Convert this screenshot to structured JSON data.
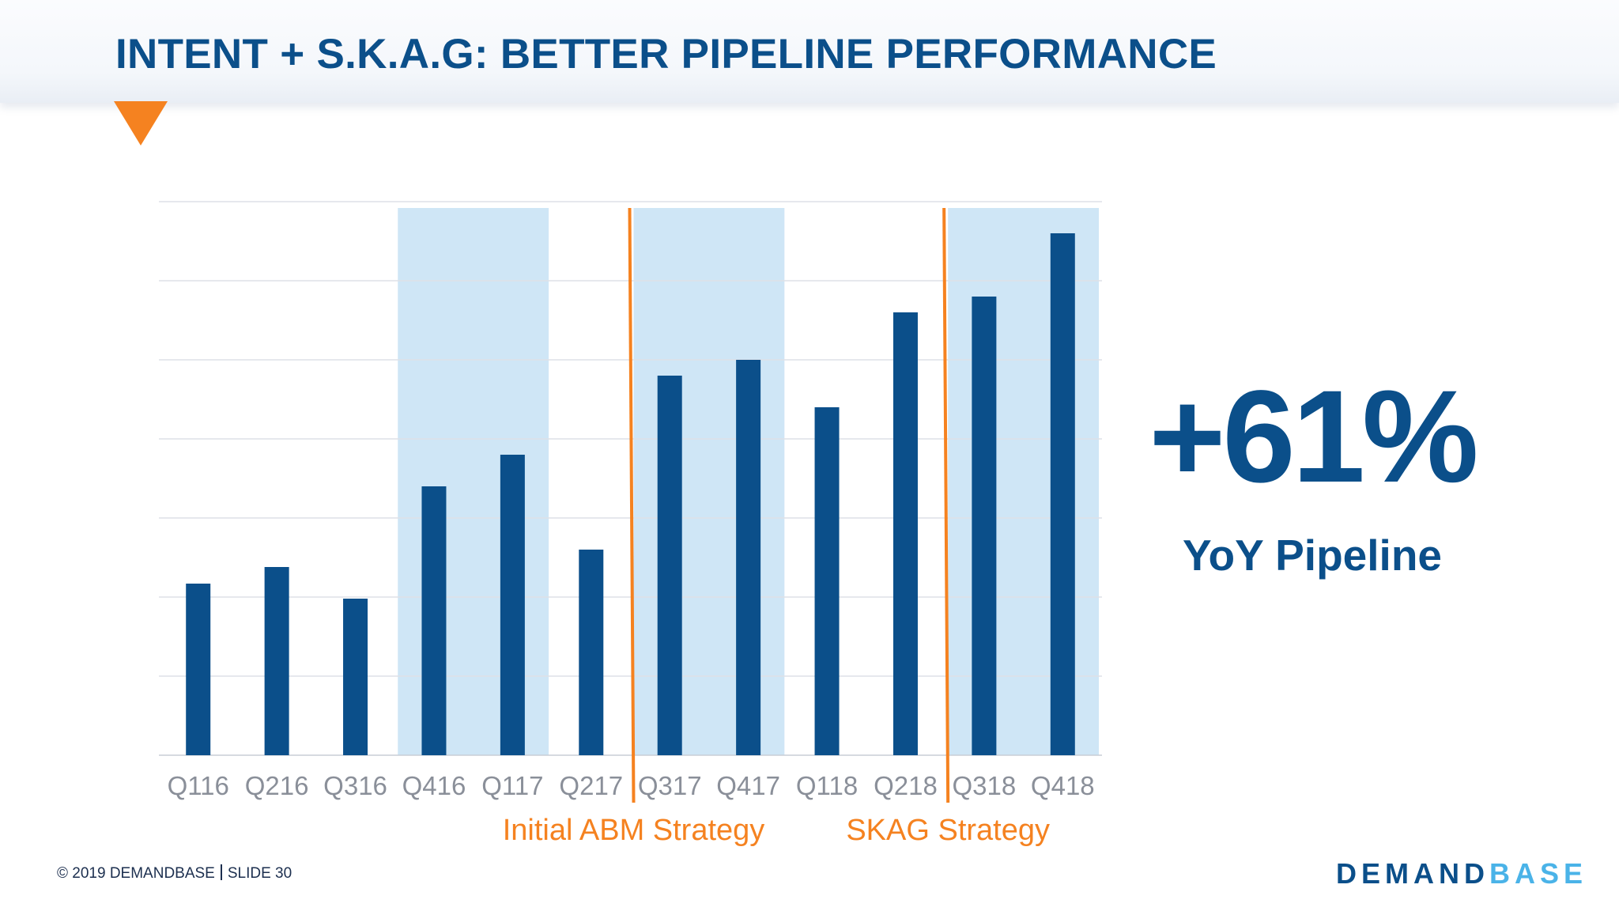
{
  "slide": {
    "title": "INTENT + S.K.A.G: BETTER PIPELINE PERFORMANCE"
  },
  "stat": {
    "value": "+61%",
    "label": "YoY Pipeline"
  },
  "footer": {
    "copyright": "© 2019 DEMANDBASE",
    "slide_number": "SLIDE 30"
  },
  "logo": {
    "part1": "DEMAND",
    "part2": "BASE"
  },
  "colors": {
    "title": "#0b4f8a",
    "bar": "#0b4f8a",
    "highlight": "#cfe6f6",
    "marker": "#f58220",
    "tick_label": "#8a8f99",
    "accent": "#f58220",
    "logo_light": "#4ab3e8"
  },
  "chart_data": {
    "type": "bar",
    "categories": [
      "Q116",
      "Q216",
      "Q316",
      "Q416",
      "Q117",
      "Q217",
      "Q317",
      "Q417",
      "Q118",
      "Q218",
      "Q318",
      "Q418"
    ],
    "values": [
      2.17,
      2.38,
      1.98,
      3.4,
      3.8,
      2.6,
      4.8,
      5.0,
      4.4,
      5.6,
      5.8,
      6.6
    ],
    "ylim": [
      0,
      7
    ],
    "y_tick_labels_shown": false,
    "grid": true,
    "title": "",
    "xlabel": "",
    "ylabel": "",
    "highlight_ranges": [
      {
        "from": "Q416",
        "to": "Q117"
      },
      {
        "from": "Q317",
        "to": "Q417"
      },
      {
        "from": "Q318",
        "to": "Q418"
      }
    ],
    "annotations": [
      {
        "text": "Initial ABM Strategy",
        "at_category": "Q317"
      },
      {
        "text": "SKAG Strategy",
        "at_category": "Q318"
      }
    ]
  }
}
